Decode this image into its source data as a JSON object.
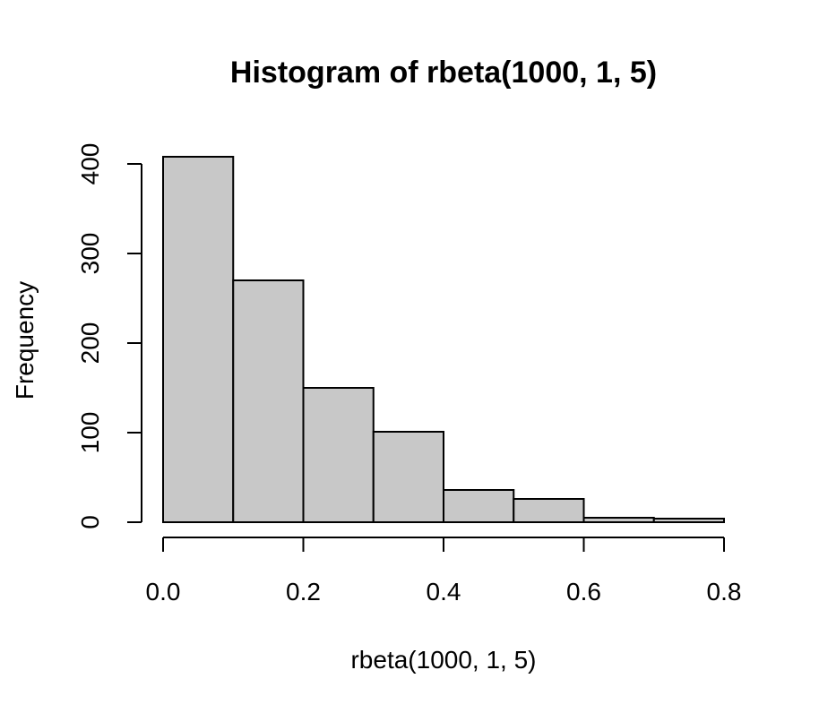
{
  "chart_data": {
    "type": "bar",
    "subtype": "histogram",
    "title": "Histogram of rbeta(1000, 1, 5)",
    "xlabel": "rbeta(1000, 1, 5)",
    "ylabel": "Frequency",
    "bin_edges": [
      0.0,
      0.1,
      0.2,
      0.3,
      0.4,
      0.5,
      0.6,
      0.7,
      0.8
    ],
    "values": [
      408,
      270,
      150,
      101,
      36,
      26,
      5,
      4
    ],
    "xlim": [
      0.0,
      0.8
    ],
    "ylim": [
      0,
      400
    ],
    "x_ticks": [
      "0.0",
      "0.2",
      "0.4",
      "0.6",
      "0.8"
    ],
    "y_ticks": [
      "0",
      "100",
      "200",
      "300",
      "400"
    ],
    "colors": {
      "bar_fill": "#c8c8c8",
      "bar_stroke": "#000000"
    },
    "grid": false,
    "legend": "none"
  }
}
